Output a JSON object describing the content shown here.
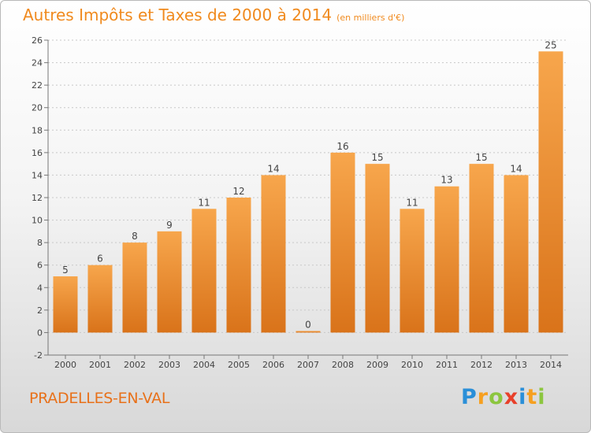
{
  "title": "Autres Impôts et Taxes de 2000 à 2014",
  "subtitle": "(en milliers d'€)",
  "town": "PRADELLES-EN-VAL",
  "logo_text": "Proxiti",
  "colors": {
    "bar_top": "#f7a64c",
    "bar_bottom": "#d9731a",
    "title": "#f08a1e",
    "grid": "#c8c8c8"
  },
  "chart_data": {
    "type": "bar",
    "categories": [
      "2000",
      "2001",
      "2002",
      "2003",
      "2004",
      "2005",
      "2006",
      "2007",
      "2008",
      "2009",
      "2010",
      "2011",
      "2012",
      "2013",
      "2014"
    ],
    "values": [
      5,
      6,
      8,
      9,
      11,
      12,
      14,
      0,
      16,
      15,
      11,
      13,
      15,
      14,
      25
    ],
    "data_labels": [
      "5",
      "6",
      "8",
      "9",
      "11",
      "12",
      "14",
      "0",
      "16",
      "15",
      "11",
      "13",
      "15",
      "14",
      "25"
    ],
    "ylim": [
      -2,
      26
    ],
    "yticks": [
      -2,
      0,
      2,
      4,
      6,
      8,
      10,
      12,
      14,
      16,
      18,
      20,
      22,
      24,
      26
    ],
    "grid": "horizontal dashed",
    "legend": "none"
  }
}
